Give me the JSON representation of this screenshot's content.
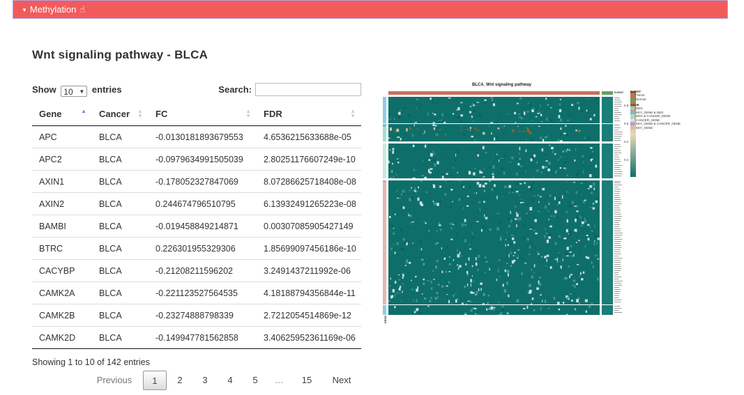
{
  "panel": {
    "title": "Methylation",
    "caret_icon": "caret-down-icon",
    "hand_icon": "pointer-hand-icon",
    "color": "#f25b5c"
  },
  "page_title": "Wnt signaling pathway - BLCA",
  "controls": {
    "show_label": "Show",
    "entries_value": "10",
    "entries_label": "entries",
    "search_label": "Search:",
    "search_value": ""
  },
  "table": {
    "columns": [
      "Gene",
      "Cancer",
      "FC",
      "FDR"
    ],
    "sorted_column": "Gene",
    "rows": [
      [
        "APC",
        "BLCA",
        "-0.0130181893679553",
        "4.6536215633688e-05"
      ],
      [
        "APC2",
        "BLCA",
        "-0.0979634991505039",
        "2.80251176607249e-10"
      ],
      [
        "AXIN1",
        "BLCA",
        "-0.178052327847069",
        "8.07286625718408e-08"
      ],
      [
        "AXIN2",
        "BLCA",
        "0.244674796510795",
        "6.13932491265223e-08"
      ],
      [
        "BAMBI",
        "BLCA",
        "-0.019458849214871",
        "0.00307085905427149"
      ],
      [
        "BTRC",
        "BLCA",
        "0.226301955329306",
        "1.85699097456186e-10"
      ],
      [
        "CACYBP",
        "BLCA",
        "-0.21208211596202",
        "3.2491437211992e-06"
      ],
      [
        "CAMK2A",
        "BLCA",
        "-0.221123527564535",
        "4.18188794356844e-11"
      ],
      [
        "CAMK2B",
        "BLCA",
        "-0.23274888798339",
        "2.7212054514869e-12"
      ],
      [
        "CAMK2D",
        "BLCA",
        "-0.149947781562858",
        "3.40625952361169e-06"
      ]
    ]
  },
  "info": "Showing 1 to 10 of 142 entries",
  "pagination": {
    "previous": "Previous",
    "pages": [
      "1",
      "2",
      "3",
      "4",
      "5",
      "…",
      "15"
    ],
    "current": "1",
    "next": "Next"
  },
  "heatmap": {
    "title": "BLCA_Wnt signaling pathway",
    "event_header": "EVENT",
    "gene_axis_label": "GENE",
    "legend": {
      "event_title": "EVENT",
      "event_items": [
        {
          "label": "Tumor",
          "color": "#c8705f"
        },
        {
          "label": "Normal",
          "color": "#66a060"
        }
      ],
      "gene_title": "GENE",
      "gene_items": [
        {
          "label": "DEG",
          "color": "#8ecde6"
        },
        {
          "label": "KEY_GENE & DEG",
          "color": "#73c0c9"
        },
        {
          "label": "DEG & CANCER_GENE",
          "color": "#a6dcd4"
        },
        {
          "label": "CANCER_GENE",
          "color": "#c8eadc"
        },
        {
          "label": "KEY_GENE & CANCER_GENE",
          "color": "#b39ddb"
        },
        {
          "label": "KEY_GENE",
          "color": "#e5b6b0"
        }
      ],
      "scale_ticks": [
        "0.8",
        "0.6",
        "0.4",
        "0.2"
      ],
      "scale_colors": [
        "#a0611c",
        "#e8d9b8",
        "#0e6f6a"
      ]
    }
  }
}
